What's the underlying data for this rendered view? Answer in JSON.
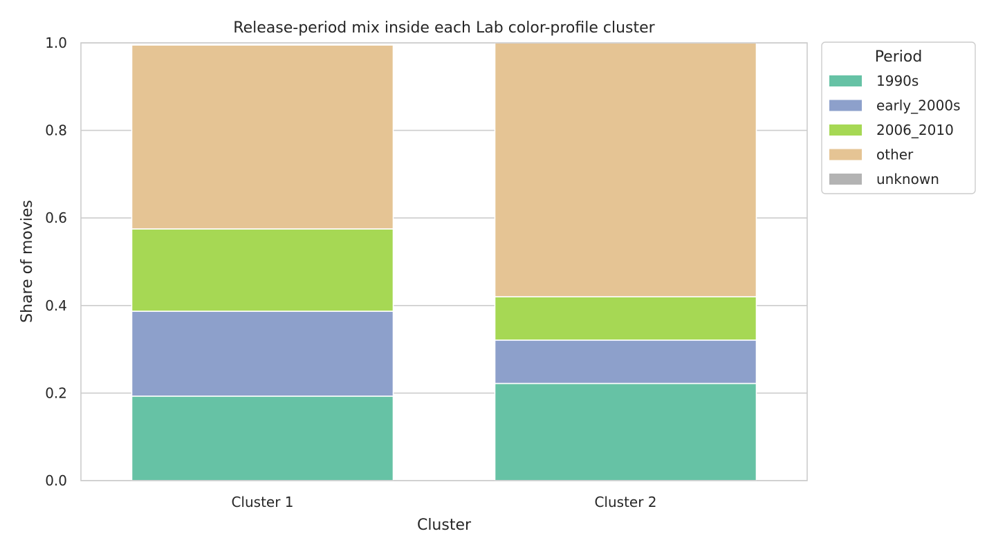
{
  "chart_data": {
    "type": "bar",
    "stacked": true,
    "title": "Release-period mix inside each Lab color-profile cluster",
    "xlabel": "Cluster",
    "ylabel": "Share of movies",
    "categories": [
      "Cluster 1",
      "Cluster 2"
    ],
    "ylim": [
      0,
      1.0
    ],
    "yticks": [
      "0.0",
      "0.2",
      "0.4",
      "0.6",
      "0.8",
      "1.0"
    ],
    "grid": "horizontal",
    "legend": {
      "title": "Period",
      "placement": "outside-top-right"
    },
    "series": [
      {
        "name": "1990s",
        "color": "#66c2a5",
        "values": [
          0.193,
          0.222
        ]
      },
      {
        "name": "early_2000s",
        "color": "#8da0cb",
        "values": [
          0.194,
          0.099
        ]
      },
      {
        "name": "2006_2010",
        "color": "#a6d854",
        "values": [
          0.188,
          0.099
        ]
      },
      {
        "name": "other",
        "color": "#e5c494",
        "values": [
          0.42,
          0.58
        ]
      },
      {
        "name": "unknown",
        "color": "#b3b3b3",
        "values": [
          0.0,
          0.0
        ]
      }
    ]
  }
}
